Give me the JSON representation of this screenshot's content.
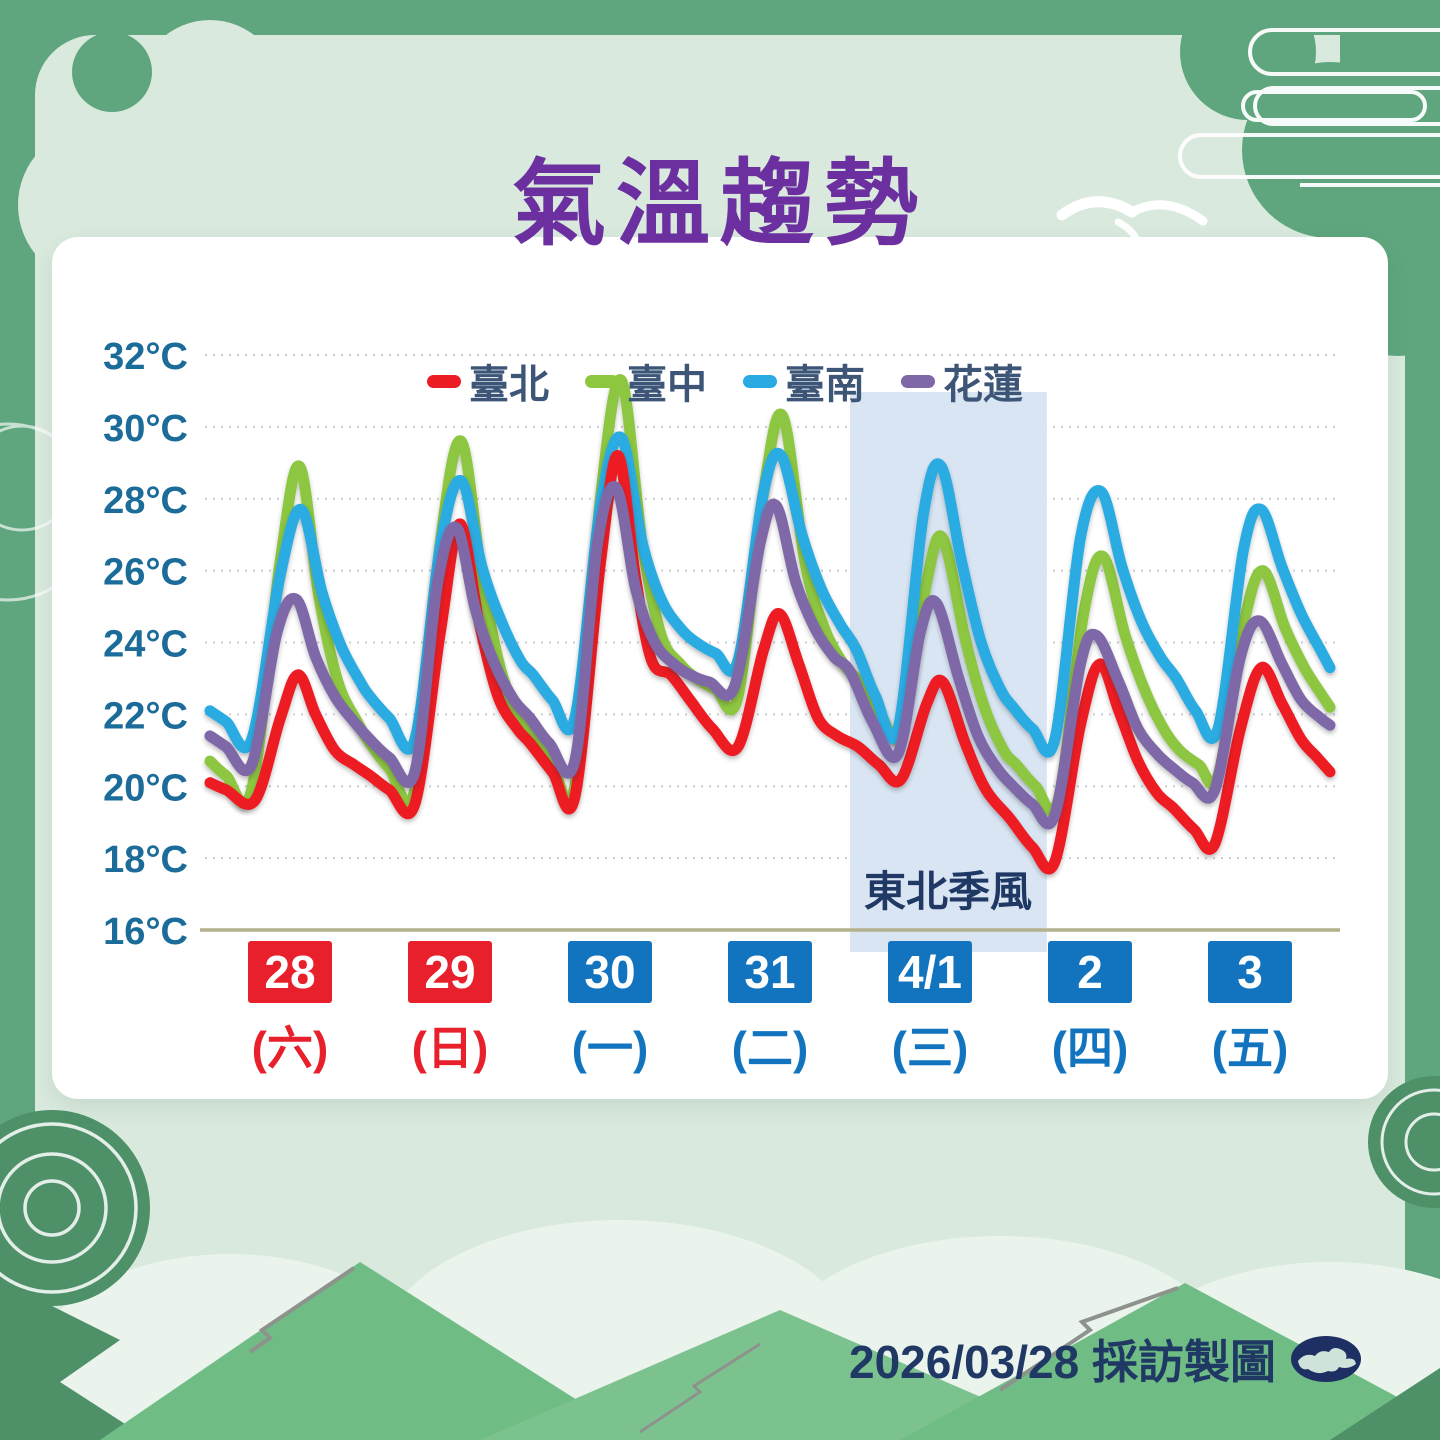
{
  "title": "氣溫趨勢",
  "footer": {
    "credit": "2026/03/28 採訪製圖",
    "logo": "cwb-cloud-logo"
  },
  "colors": {
    "frame_green": "#5FA67E",
    "inner_green": "#D9E9DE",
    "panel": "#FFFFFF",
    "title_purple": "#6B2F9F",
    "axis_label": "#1B6C99",
    "legend_text": "#3D5577",
    "grid": "#C8CDD2",
    "baseline_olive": "#B3B18C",
    "holiday_red": "#E8202C",
    "weekday_blue": "#1273BF",
    "highlight_blue": "#D7E4F2",
    "monsoon_text": "#1F3864",
    "footer_navy": "#1F3864"
  },
  "chart_data": {
    "type": "line",
    "title": "氣溫趨勢",
    "y_unit": "°C",
    "ylim": [
      16,
      32
    ],
    "yticks": [
      32,
      30,
      28,
      26,
      24,
      22,
      20,
      18,
      16
    ],
    "grid": true,
    "legend_position": "top-center",
    "x_days": [
      {
        "date": "28",
        "weekday": "(六)",
        "color": "#E8202C"
      },
      {
        "date": "29",
        "weekday": "(日)",
        "color": "#E8202C"
      },
      {
        "date": "30",
        "weekday": "(一)",
        "color": "#1273BF"
      },
      {
        "date": "31",
        "weekday": "(二)",
        "color": "#1273BF"
      },
      {
        "date": "4/1",
        "weekday": "(三)",
        "color": "#1273BF"
      },
      {
        "date": "2",
        "weekday": "(四)",
        "color": "#1273BF"
      },
      {
        "date": "3",
        "weekday": "(五)",
        "color": "#1273BF"
      }
    ],
    "highlight": {
      "label": "東北季風",
      "day_start": 4.0,
      "day_end": 5.23,
      "color": "#D7E4F2"
    },
    "draw_order": [
      1,
      2,
      0,
      3
    ],
    "series": [
      {
        "name": "臺北",
        "color": "#EC1C24",
        "points": [
          [
            0.0,
            20.1
          ],
          [
            0.1,
            19.9
          ],
          [
            0.28,
            19.6
          ],
          [
            0.44,
            21.9
          ],
          [
            0.55,
            23.1
          ],
          [
            0.66,
            22.0
          ],
          [
            0.78,
            21.0
          ],
          [
            0.9,
            20.6
          ],
          [
            1.0,
            20.3
          ],
          [
            1.12,
            19.9
          ],
          [
            1.28,
            19.5
          ],
          [
            1.44,
            24.3
          ],
          [
            1.56,
            27.3
          ],
          [
            1.68,
            24.6
          ],
          [
            1.8,
            22.5
          ],
          [
            1.92,
            21.6
          ],
          [
            2.0,
            21.2
          ],
          [
            2.14,
            20.4
          ],
          [
            2.28,
            19.7
          ],
          [
            2.44,
            26.2
          ],
          [
            2.55,
            29.2
          ],
          [
            2.66,
            25.8
          ],
          [
            2.76,
            23.5
          ],
          [
            2.88,
            23.1
          ],
          [
            3.0,
            22.4
          ],
          [
            3.14,
            21.6
          ],
          [
            3.3,
            21.1
          ],
          [
            3.46,
            23.8
          ],
          [
            3.56,
            24.8
          ],
          [
            3.68,
            23.4
          ],
          [
            3.8,
            21.9
          ],
          [
            3.92,
            21.4
          ],
          [
            4.05,
            21.1
          ],
          [
            4.18,
            20.6
          ],
          [
            4.32,
            20.2
          ],
          [
            4.48,
            22.3
          ],
          [
            4.58,
            22.9
          ],
          [
            4.72,
            21.2
          ],
          [
            4.85,
            19.9
          ],
          [
            5.0,
            19.1
          ],
          [
            5.14,
            18.3
          ],
          [
            5.28,
            17.9
          ],
          [
            5.44,
            21.7
          ],
          [
            5.56,
            23.4
          ],
          [
            5.68,
            22.1
          ],
          [
            5.8,
            20.7
          ],
          [
            5.92,
            19.8
          ],
          [
            6.02,
            19.4
          ],
          [
            6.15,
            18.8
          ],
          [
            6.28,
            18.4
          ],
          [
            6.44,
            21.6
          ],
          [
            6.57,
            23.3
          ],
          [
            6.7,
            22.3
          ],
          [
            6.82,
            21.3
          ],
          [
            6.92,
            20.8
          ],
          [
            7.0,
            20.4
          ]
        ]
      },
      {
        "name": "臺中",
        "color": "#8DC63F",
        "points": [
          [
            0.0,
            20.7
          ],
          [
            0.1,
            20.3
          ],
          [
            0.26,
            19.9
          ],
          [
            0.44,
            26.3
          ],
          [
            0.56,
            28.9
          ],
          [
            0.68,
            25.3
          ],
          [
            0.8,
            22.9
          ],
          [
            0.92,
            21.8
          ],
          [
            1.0,
            21.2
          ],
          [
            1.12,
            20.5
          ],
          [
            1.28,
            19.9
          ],
          [
            1.44,
            26.8
          ],
          [
            1.57,
            29.6
          ],
          [
            1.7,
            25.8
          ],
          [
            1.82,
            23.2
          ],
          [
            1.94,
            21.9
          ],
          [
            2.02,
            21.4
          ],
          [
            2.14,
            20.6
          ],
          [
            2.28,
            20.0
          ],
          [
            2.44,
            28.0
          ],
          [
            2.57,
            31.3
          ],
          [
            2.7,
            26.8
          ],
          [
            2.82,
            24.2
          ],
          [
            2.94,
            23.4
          ],
          [
            3.04,
            23.0
          ],
          [
            3.16,
            22.7
          ],
          [
            3.3,
            22.5
          ],
          [
            3.46,
            28.2
          ],
          [
            3.58,
            30.3
          ],
          [
            3.72,
            26.2
          ],
          [
            3.84,
            24.4
          ],
          [
            3.96,
            23.4
          ],
          [
            4.06,
            22.9
          ],
          [
            4.18,
            22.1
          ],
          [
            4.32,
            21.5
          ],
          [
            4.48,
            25.7
          ],
          [
            4.58,
            26.9
          ],
          [
            4.72,
            24.1
          ],
          [
            4.84,
            22.2
          ],
          [
            4.96,
            21.0
          ],
          [
            5.04,
            20.6
          ],
          [
            5.16,
            20.0
          ],
          [
            5.3,
            19.6
          ],
          [
            5.46,
            24.8
          ],
          [
            5.58,
            26.4
          ],
          [
            5.72,
            24.2
          ],
          [
            5.84,
            22.7
          ],
          [
            5.96,
            21.6
          ],
          [
            6.06,
            21.0
          ],
          [
            6.18,
            20.6
          ],
          [
            6.3,
            20.3
          ],
          [
            6.46,
            24.5
          ],
          [
            6.58,
            26.0
          ],
          [
            6.72,
            24.4
          ],
          [
            6.84,
            23.3
          ],
          [
            6.94,
            22.6
          ],
          [
            7.0,
            22.2
          ]
        ]
      },
      {
        "name": "臺南",
        "color": "#29ABE2",
        "points": [
          [
            0.0,
            22.1
          ],
          [
            0.1,
            21.8
          ],
          [
            0.26,
            21.3
          ],
          [
            0.44,
            25.9
          ],
          [
            0.57,
            27.7
          ],
          [
            0.7,
            25.4
          ],
          [
            0.82,
            23.9
          ],
          [
            0.94,
            22.9
          ],
          [
            1.0,
            22.5
          ],
          [
            1.12,
            21.9
          ],
          [
            1.28,
            21.3
          ],
          [
            1.44,
            26.7
          ],
          [
            1.57,
            28.5
          ],
          [
            1.7,
            26.1
          ],
          [
            1.82,
            24.6
          ],
          [
            1.94,
            23.5
          ],
          [
            2.02,
            23.1
          ],
          [
            2.14,
            22.4
          ],
          [
            2.28,
            21.9
          ],
          [
            2.44,
            27.8
          ],
          [
            2.57,
            29.7
          ],
          [
            2.7,
            26.8
          ],
          [
            2.82,
            25.2
          ],
          [
            2.94,
            24.4
          ],
          [
            3.04,
            24.0
          ],
          [
            3.16,
            23.7
          ],
          [
            3.3,
            23.5
          ],
          [
            3.46,
            28.2
          ],
          [
            3.57,
            29.2
          ],
          [
            3.7,
            27.0
          ],
          [
            3.82,
            25.5
          ],
          [
            3.94,
            24.5
          ],
          [
            4.04,
            23.8
          ],
          [
            4.16,
            22.5
          ],
          [
            4.3,
            21.6
          ],
          [
            4.46,
            27.6
          ],
          [
            4.57,
            28.9
          ],
          [
            4.7,
            26.2
          ],
          [
            4.82,
            24.0
          ],
          [
            4.94,
            22.7
          ],
          [
            5.02,
            22.2
          ],
          [
            5.14,
            21.6
          ],
          [
            5.28,
            21.3
          ],
          [
            5.44,
            26.9
          ],
          [
            5.57,
            28.2
          ],
          [
            5.7,
            26.1
          ],
          [
            5.82,
            24.6
          ],
          [
            5.94,
            23.6
          ],
          [
            6.04,
            23.0
          ],
          [
            6.16,
            22.1
          ],
          [
            6.3,
            21.6
          ],
          [
            6.46,
            26.6
          ],
          [
            6.57,
            27.7
          ],
          [
            6.7,
            26.1
          ],
          [
            6.82,
            24.8
          ],
          [
            6.94,
            23.8
          ],
          [
            7.0,
            23.3
          ]
        ]
      },
      {
        "name": "花蓮",
        "color": "#7E68A8",
        "points": [
          [
            0.0,
            21.4
          ],
          [
            0.1,
            21.1
          ],
          [
            0.26,
            20.6
          ],
          [
            0.42,
            24.3
          ],
          [
            0.54,
            25.2
          ],
          [
            0.66,
            23.6
          ],
          [
            0.78,
            22.5
          ],
          [
            0.9,
            21.8
          ],
          [
            1.0,
            21.3
          ],
          [
            1.12,
            20.8
          ],
          [
            1.28,
            20.4
          ],
          [
            1.42,
            25.6
          ],
          [
            1.54,
            27.2
          ],
          [
            1.66,
            24.9
          ],
          [
            1.78,
            23.4
          ],
          [
            1.9,
            22.4
          ],
          [
            2.0,
            21.9
          ],
          [
            2.12,
            21.2
          ],
          [
            2.28,
            20.7
          ],
          [
            2.42,
            26.7
          ],
          [
            2.54,
            28.3
          ],
          [
            2.66,
            25.5
          ],
          [
            2.78,
            24.0
          ],
          [
            2.9,
            23.4
          ],
          [
            3.0,
            23.1
          ],
          [
            3.12,
            22.9
          ],
          [
            3.28,
            22.8
          ],
          [
            3.44,
            26.8
          ],
          [
            3.54,
            27.8
          ],
          [
            3.66,
            25.7
          ],
          [
            3.78,
            24.4
          ],
          [
            3.9,
            23.6
          ],
          [
            4.0,
            23.2
          ],
          [
            4.14,
            21.8
          ],
          [
            4.3,
            20.9
          ],
          [
            4.44,
            24.3
          ],
          [
            4.54,
            25.1
          ],
          [
            4.68,
            23.0
          ],
          [
            4.8,
            21.4
          ],
          [
            4.92,
            20.5
          ],
          [
            5.02,
            20.0
          ],
          [
            5.14,
            19.5
          ],
          [
            5.28,
            19.2
          ],
          [
            5.44,
            23.4
          ],
          [
            5.54,
            24.2
          ],
          [
            5.68,
            22.9
          ],
          [
            5.8,
            21.6
          ],
          [
            5.92,
            20.9
          ],
          [
            6.02,
            20.5
          ],
          [
            6.14,
            20.1
          ],
          [
            6.28,
            19.9
          ],
          [
            6.44,
            23.6
          ],
          [
            6.56,
            24.6
          ],
          [
            6.7,
            23.4
          ],
          [
            6.82,
            22.4
          ],
          [
            6.94,
            21.9
          ],
          [
            7.0,
            21.7
          ]
        ]
      }
    ]
  }
}
